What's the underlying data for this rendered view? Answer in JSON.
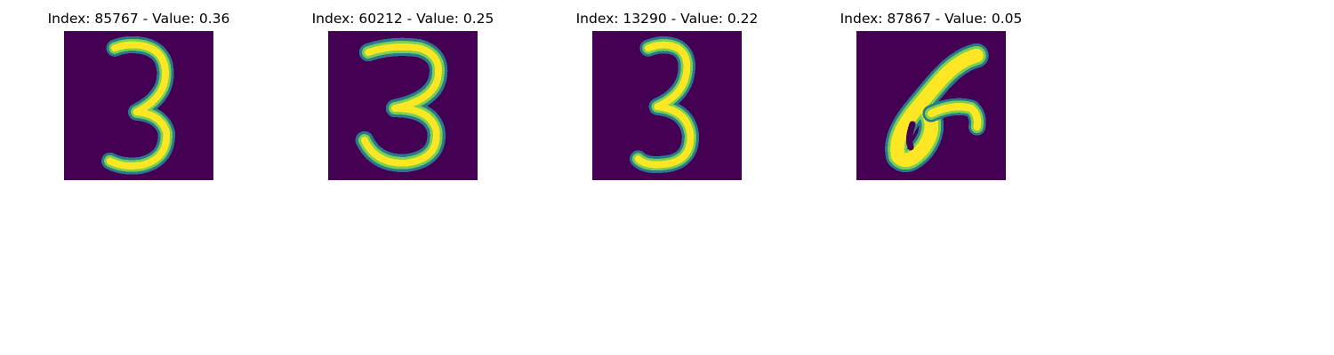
{
  "panels": [
    {
      "title": "Index: 85767 - Value: 0.36",
      "content": "digit 3"
    },
    {
      "title": "Index: 60212 - Value: 0.25",
      "content": "digit 3"
    },
    {
      "title": "Index: 13290 - Value: 0.22",
      "content": "digit 3"
    },
    {
      "title": "Index: 87867 - Value: 0.05",
      "content": "handwritten stroke"
    }
  ],
  "colors": {
    "background": "#440154",
    "stroke": "#fde725",
    "edge_mid": "#22a884",
    "edge_light": "#7ad151",
    "edge_dark": "#2a788e"
  }
}
